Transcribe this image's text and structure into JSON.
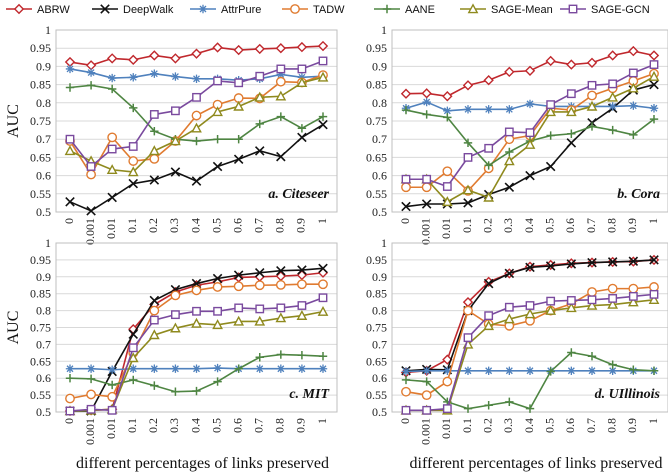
{
  "legend": {
    "items": [
      {
        "name": "ABRW",
        "color": "#c0282d",
        "marker": "diamond"
      },
      {
        "name": "DeepWalk",
        "color": "#111111",
        "marker": "x"
      },
      {
        "name": "AttrPure",
        "color": "#4f81bd",
        "marker": "star"
      },
      {
        "name": "TADW",
        "color": "#e07b30",
        "marker": "circle"
      },
      {
        "name": "AANE",
        "color": "#4e8542",
        "marker": "plus"
      },
      {
        "name": "SAGE-Mean",
        "color": "#8f8a1e",
        "marker": "triangle"
      },
      {
        "name": "SAGE-GCN",
        "color": "#7a4a9e",
        "marker": "square"
      }
    ]
  },
  "chart_data": [
    {
      "type": "line",
      "title": "a. Citeseer",
      "xlabel": "",
      "ylabel": "AUC",
      "ylim": [
        0.5,
        1.0
      ],
      "grid": true,
      "x": [
        "0",
        "0.001",
        "0.01",
        "0.1",
        "0.2",
        "0.3",
        "0.4",
        "0.5",
        "0.6",
        "0.7",
        "0.8",
        "0.9",
        "1"
      ],
      "series": [
        {
          "name": "ABRW",
          "values": [
            0.912,
            0.903,
            0.922,
            0.918,
            0.93,
            0.922,
            0.935,
            0.952,
            0.945,
            0.948,
            0.95,
            0.953,
            0.956
          ]
        },
        {
          "name": "DeepWalk",
          "values": [
            0.528,
            0.503,
            0.54,
            0.578,
            0.588,
            0.61,
            0.585,
            0.625,
            0.645,
            0.668,
            0.652,
            0.705,
            0.74
          ]
        },
        {
          "name": "AttrPure",
          "values": [
            0.893,
            0.883,
            0.868,
            0.87,
            0.88,
            0.872,
            0.866,
            0.866,
            0.862,
            0.866,
            0.878,
            0.87,
            0.873
          ]
        },
        {
          "name": "TADW",
          "values": [
            0.695,
            0.603,
            0.705,
            0.64,
            0.646,
            0.695,
            0.765,
            0.795,
            0.813,
            0.812,
            0.858,
            0.856,
            0.876
          ]
        },
        {
          "name": "AANE",
          "values": [
            0.842,
            0.848,
            0.838,
            0.786,
            0.722,
            0.7,
            0.695,
            0.7,
            0.7,
            0.742,
            0.762,
            0.73,
            0.762
          ]
        },
        {
          "name": "SAGE-Mean",
          "values": [
            0.668,
            0.64,
            0.616,
            0.61,
            0.668,
            0.695,
            0.73,
            0.775,
            0.79,
            0.815,
            0.818,
            0.855,
            0.87
          ]
        },
        {
          "name": "SAGE-GCN",
          "values": [
            0.7,
            0.625,
            0.673,
            0.68,
            0.768,
            0.778,
            0.815,
            0.86,
            0.855,
            0.873,
            0.893,
            0.893,
            0.915
          ]
        }
      ]
    },
    {
      "type": "line",
      "title": "b. Cora",
      "xlabel": "",
      "ylabel": "",
      "ylim": [
        0.5,
        1.0
      ],
      "grid": true,
      "x": [
        "0",
        "0.001",
        "0.01",
        "0.1",
        "0.2",
        "0.3",
        "0.4",
        "0.5",
        "0.6",
        "0.7",
        "0.8",
        "0.9",
        "1"
      ],
      "series": [
        {
          "name": "ABRW",
          "values": [
            0.825,
            0.826,
            0.818,
            0.848,
            0.862,
            0.885,
            0.888,
            0.915,
            0.905,
            0.91,
            0.93,
            0.942,
            0.93
          ]
        },
        {
          "name": "DeepWalk",
          "values": [
            0.515,
            0.522,
            0.522,
            0.525,
            0.548,
            0.568,
            0.6,
            0.625,
            0.69,
            0.745,
            0.785,
            0.835,
            0.85
          ]
        },
        {
          "name": "AttrPure",
          "values": [
            0.785,
            0.802,
            0.778,
            0.782,
            0.782,
            0.782,
            0.797,
            0.79,
            0.79,
            0.79,
            0.79,
            0.792,
            0.785
          ]
        },
        {
          "name": "TADW",
          "values": [
            0.568,
            0.568,
            0.612,
            0.558,
            0.62,
            0.7,
            0.71,
            0.785,
            0.78,
            0.82,
            0.84,
            0.86,
            0.88
          ]
        },
        {
          "name": "AANE",
          "values": [
            0.78,
            0.768,
            0.76,
            0.69,
            0.628,
            0.665,
            0.695,
            0.71,
            0.715,
            0.735,
            0.725,
            0.712,
            0.755
          ]
        },
        {
          "name": "SAGE-Mean",
          "values": [
            0.59,
            0.59,
            0.528,
            0.56,
            0.54,
            0.64,
            0.685,
            0.775,
            0.775,
            0.79,
            0.815,
            0.84,
            0.872
          ]
        },
        {
          "name": "SAGE-GCN",
          "values": [
            0.59,
            0.59,
            0.57,
            0.65,
            0.675,
            0.72,
            0.718,
            0.795,
            0.825,
            0.848,
            0.852,
            0.882,
            0.905
          ]
        }
      ]
    },
    {
      "type": "line",
      "title": "c. MIT",
      "xlabel": "different percentages of links preserved",
      "ylabel": "AUC",
      "ylim": [
        0.5,
        1.0
      ],
      "grid": true,
      "x": [
        "0",
        "0.001",
        "0.01",
        "0.1",
        "0.2",
        "0.3",
        "0.4",
        "0.5",
        "0.6",
        "0.7",
        "0.8",
        "0.9",
        "1"
      ],
      "series": [
        {
          "name": "ABRW",
          "values": [
            0.503,
            0.505,
            0.508,
            0.745,
            0.818,
            0.855,
            0.875,
            0.885,
            0.898,
            0.9,
            0.902,
            0.905,
            0.912
          ]
        },
        {
          "name": "DeepWalk",
          "values": [
            0.503,
            0.503,
            0.62,
            0.73,
            0.83,
            0.862,
            0.88,
            0.895,
            0.905,
            0.912,
            0.918,
            0.92,
            0.925
          ]
        },
        {
          "name": "AttrPure",
          "values": [
            0.628,
            0.628,
            0.625,
            0.628,
            0.628,
            0.628,
            0.628,
            0.63,
            0.628,
            0.628,
            0.628,
            0.628,
            0.628
          ]
        },
        {
          "name": "TADW",
          "values": [
            0.54,
            0.552,
            0.545,
            0.675,
            0.8,
            0.845,
            0.86,
            0.87,
            0.872,
            0.875,
            0.876,
            0.878,
            0.878
          ]
        },
        {
          "name": "AANE",
          "values": [
            0.6,
            0.598,
            0.58,
            0.595,
            0.578,
            0.56,
            0.562,
            0.59,
            0.628,
            0.662,
            0.67,
            0.668,
            0.665
          ]
        },
        {
          "name": "SAGE-Mean",
          "values": [
            0.503,
            0.505,
            0.508,
            0.66,
            0.728,
            0.748,
            0.762,
            0.758,
            0.768,
            0.768,
            0.778,
            0.785,
            0.797
          ]
        },
        {
          "name": "SAGE-GCN",
          "values": [
            0.503,
            0.508,
            0.505,
            0.69,
            0.772,
            0.788,
            0.798,
            0.798,
            0.808,
            0.805,
            0.808,
            0.815,
            0.838
          ]
        }
      ]
    },
    {
      "type": "line",
      "title": "d. UIllinois",
      "xlabel": "different percentages of links preserved",
      "ylabel": "",
      "ylim": [
        0.5,
        1.0
      ],
      "grid": true,
      "x": [
        "0",
        "0.001",
        "0.01",
        "0.1",
        "0.2",
        "0.3",
        "0.4",
        "0.5",
        "0.6",
        "0.7",
        "0.8",
        "0.9",
        "1"
      ],
      "series": [
        {
          "name": "ABRW",
          "values": [
            0.617,
            0.622,
            0.655,
            0.825,
            0.885,
            0.91,
            0.93,
            0.935,
            0.94,
            0.942,
            0.944,
            0.945,
            0.95
          ]
        },
        {
          "name": "DeepWalk",
          "values": [
            0.622,
            0.626,
            0.625,
            0.8,
            0.88,
            0.91,
            0.928,
            0.932,
            0.938,
            0.942,
            0.944,
            0.946,
            0.95
          ]
        },
        {
          "name": "AttrPure",
          "values": [
            0.62,
            0.622,
            0.622,
            0.622,
            0.622,
            0.622,
            0.622,
            0.622,
            0.622,
            0.622,
            0.622,
            0.622,
            0.622
          ]
        },
        {
          "name": "TADW",
          "values": [
            0.56,
            0.55,
            0.59,
            0.8,
            0.76,
            0.755,
            0.77,
            0.8,
            0.82,
            0.855,
            0.865,
            0.865,
            0.87
          ]
        },
        {
          "name": "AANE",
          "values": [
            0.595,
            0.59,
            0.53,
            0.51,
            0.52,
            0.53,
            0.51,
            0.62,
            0.676,
            0.665,
            0.64,
            0.625,
            0.622
          ]
        },
        {
          "name": "SAGE-Mean",
          "values": [
            0.505,
            0.505,
            0.505,
            0.7,
            0.755,
            0.775,
            0.79,
            0.8,
            0.808,
            0.815,
            0.818,
            0.825,
            0.832
          ]
        },
        {
          "name": "SAGE-GCN",
          "values": [
            0.505,
            0.505,
            0.51,
            0.72,
            0.785,
            0.81,
            0.815,
            0.828,
            0.83,
            0.832,
            0.836,
            0.842,
            0.848
          ]
        }
      ]
    }
  ]
}
